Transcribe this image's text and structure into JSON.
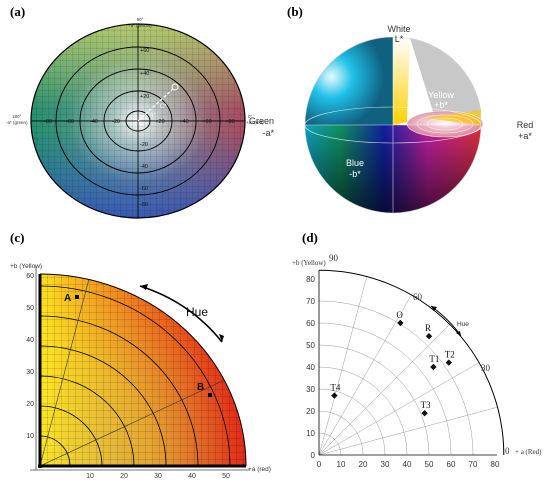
{
  "panels": {
    "a": {
      "label": "(a)",
      "top_label": "90°",
      "top_label_2": "+b* (yellow)",
      "left_label": "180°",
      "left_label_2": "-a* (green)",
      "right_label": "0°",
      "right_label_2": "+a* (red)",
      "side_label_1": "Green",
      "side_label_2": "-a*",
      "h_ticks": [
        "-80",
        "-60",
        "-40",
        "-20",
        "+20",
        "+40",
        "+60",
        "+80"
      ],
      "v_ticks": [
        "+60",
        "+40",
        "+20",
        "-20",
        "-40",
        "-60",
        "-80"
      ],
      "annotation": "C*",
      "annotation_2": "h°"
    },
    "b": {
      "label": "(b)",
      "white": "White",
      "white_axis": "L*",
      "yellow": "Yellow",
      "yellow_axis": "+b*",
      "red": "Red",
      "red_axis": "+a*",
      "blue": "Blue",
      "blue_axis": "-b*"
    },
    "c": {
      "label": "(c)",
      "y_axis_label": "+b (Yellow)",
      "x_axis_label": "+a (red)",
      "y_ticks": [
        "60",
        "50",
        "40",
        "30",
        "20",
        "10"
      ],
      "x_ticks": [
        "10",
        "20",
        "30",
        "40",
        "50"
      ],
      "hue_label": "Hue",
      "point_a": "A",
      "point_b": "B"
    },
    "d": {
      "label": "(d)",
      "y_axis_label": "+b (Yellow)",
      "x_axis_label": "+ a (Red)",
      "angle_90": "90",
      "angle_60": "60",
      "angle_30": "30",
      "angle_0": "0",
      "hue_label": "Hue",
      "y_ticks": [
        "80",
        "70",
        "60",
        "50",
        "40",
        "30",
        "20",
        "10",
        "0"
      ],
      "x_ticks": [
        "0",
        "10",
        "20",
        "30",
        "40",
        "50",
        "60",
        "70",
        "80"
      ],
      "points": [
        {
          "name": "O",
          "a": 37,
          "b": 60
        },
        {
          "name": "R",
          "a": 50,
          "b": 54
        },
        {
          "name": "T1",
          "a": 52,
          "b": 40
        },
        {
          "name": "T2",
          "a": 59,
          "b": 42
        },
        {
          "name": "T3",
          "a": 48,
          "b": 19
        },
        {
          "name": "T4",
          "a": 7,
          "b": 27
        }
      ]
    }
  }
}
